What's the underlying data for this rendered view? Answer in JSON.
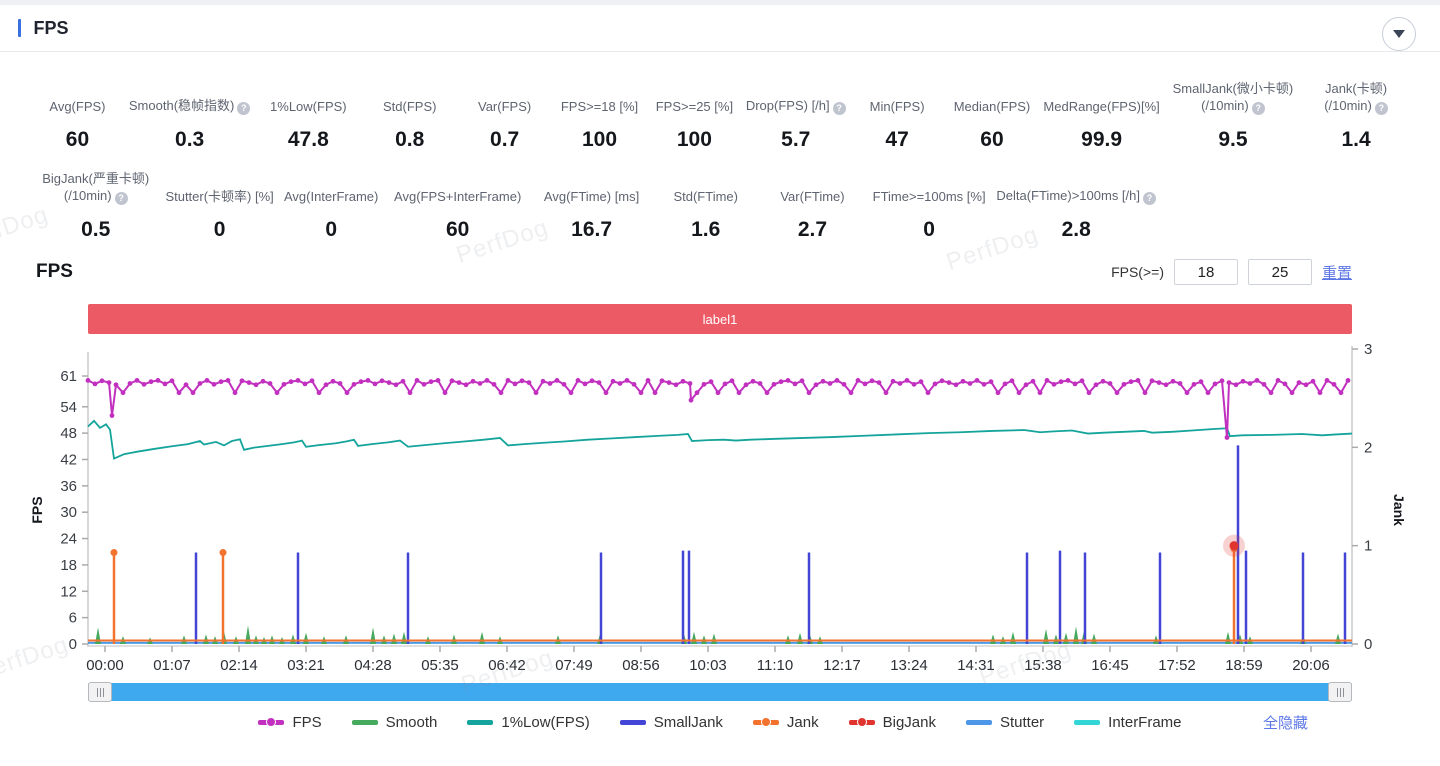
{
  "header": {
    "title": "FPS"
  },
  "icons": {
    "help": "?",
    "collapse": "chevron-down",
    "grip": "|||"
  },
  "watermark": "PerfDog",
  "stats_row1": [
    {
      "lines": [
        "Avg(FPS)"
      ],
      "value": "60"
    },
    {
      "lines": [
        "Smooth(稳帧指数)"
      ],
      "help": true,
      "value": "0.3"
    },
    {
      "lines": [
        "1%Low(FPS)"
      ],
      "value": "47.8"
    },
    {
      "lines": [
        "Std(FPS)"
      ],
      "value": "0.8"
    },
    {
      "lines": [
        "Var(FPS)"
      ],
      "value": "0.7"
    },
    {
      "lines": [
        "FPS>=18 [%]"
      ],
      "value": "100"
    },
    {
      "lines": [
        "FPS>=25 [%]"
      ],
      "value": "100"
    },
    {
      "lines": [
        "Drop(FPS) [/h]"
      ],
      "help": true,
      "value": "5.7"
    },
    {
      "lines": [
        "Min(FPS)"
      ],
      "value": "47"
    },
    {
      "lines": [
        "Median(FPS)"
      ],
      "value": "60"
    },
    {
      "lines": [
        "MedRange(FPS)[%]"
      ],
      "value": "99.9"
    },
    {
      "lines": [
        "SmallJank(微小卡顿)",
        "(/10min)"
      ],
      "help": true,
      "value": "9.5"
    },
    {
      "lines": [
        "Jank(卡顿)",
        "(/10min)"
      ],
      "help": true,
      "value": "1.4"
    }
  ],
  "stats_row2": [
    {
      "lines": [
        "BigJank(严重卡顿)",
        "(/10min)"
      ],
      "help": true,
      "value": "0.5"
    },
    {
      "lines": [
        "Stutter(卡顿率) [%]"
      ],
      "value": "0"
    },
    {
      "lines": [
        "Avg(InterFrame)"
      ],
      "value": "0"
    },
    {
      "lines": [
        "Avg(FPS+InterFrame)"
      ],
      "value": "60"
    },
    {
      "lines": [
        "Avg(FTime) [ms]"
      ],
      "value": "16.7"
    },
    {
      "lines": [
        "Std(FTime)"
      ],
      "value": "1.6"
    },
    {
      "lines": [
        "Var(FTime)"
      ],
      "value": "2.7"
    },
    {
      "lines": [
        "FTime>=100ms [%]"
      ],
      "value": "0"
    },
    {
      "lines": [
        "Delta(FTime)>100ms [/h]"
      ],
      "help": true,
      "value": "2.8"
    }
  ],
  "chart_section": {
    "title": "FPS",
    "threshold_label": "FPS(>=)",
    "min_value": "18",
    "max_value": "25",
    "reset_label": "重置",
    "banner_label": "label1",
    "hide_all_label": "全隐藏"
  },
  "chart_data": {
    "type": "line",
    "title": "FPS",
    "x_ticks": [
      "00:00",
      "01:07",
      "02:14",
      "03:21",
      "04:28",
      "05:35",
      "06:42",
      "07:49",
      "08:56",
      "10:03",
      "11:10",
      "12:17",
      "13:24",
      "14:31",
      "15:38",
      "16:45",
      "17:52",
      "18:59",
      "20:06"
    ],
    "x_tick_interval_s": 67,
    "x_duration_s": 1264,
    "left_axis": {
      "label": "FPS",
      "ticks": [
        0,
        6,
        12,
        18,
        24,
        30,
        36,
        42,
        48,
        54,
        61
      ],
      "max": 61
    },
    "right_axis": {
      "label": "Jank",
      "ticks": [
        0,
        1,
        2,
        3
      ],
      "max": 3
    },
    "series": [
      {
        "name": "1%Low(FPS)",
        "color": "#14a49c",
        "axis": "left",
        "style": "line",
        "points": [
          [
            0,
            49.5
          ],
          [
            6,
            50.8
          ],
          [
            12,
            49.2
          ],
          [
            18,
            50.0
          ],
          [
            22,
            48.8
          ],
          [
            26,
            42.2
          ],
          [
            36,
            43.2
          ],
          [
            50,
            43.8
          ],
          [
            66,
            44.4
          ],
          [
            84,
            45.0
          ],
          [
            100,
            45.5
          ],
          [
            112,
            46.2
          ],
          [
            116,
            45.4
          ],
          [
            128,
            46.0
          ],
          [
            136,
            45.2
          ],
          [
            144,
            46.2
          ],
          [
            152,
            46.6
          ],
          [
            156,
            44.2
          ],
          [
            166,
            44.7
          ],
          [
            180,
            45.1
          ],
          [
            194,
            45.5
          ],
          [
            206,
            45.9
          ],
          [
            214,
            46.3
          ],
          [
            218,
            44.9
          ],
          [
            232,
            45.3
          ],
          [
            248,
            45.7
          ],
          [
            258,
            46.1
          ],
          [
            266,
            46.5
          ],
          [
            270,
            45.1
          ],
          [
            284,
            45.5
          ],
          [
            300,
            45.9
          ],
          [
            312,
            46.3
          ],
          [
            320,
            44.9
          ],
          [
            334,
            45.2
          ],
          [
            356,
            45.7
          ],
          [
            376,
            46.1
          ],
          [
            396,
            46.5
          ],
          [
            412,
            46.9
          ],
          [
            420,
            45.2
          ],
          [
            436,
            45.5
          ],
          [
            456,
            45.8
          ],
          [
            476,
            46.1
          ],
          [
            500,
            46.5
          ],
          [
            524,
            46.8
          ],
          [
            548,
            47.1
          ],
          [
            572,
            47.4
          ],
          [
            590,
            47.6
          ],
          [
            600,
            47.8
          ],
          [
            604,
            46.2
          ],
          [
            620,
            46.4
          ],
          [
            636,
            46.5
          ],
          [
            648,
            46.3
          ],
          [
            662,
            46.5
          ],
          [
            688,
            46.7
          ],
          [
            716,
            46.9
          ],
          [
            744,
            47.1
          ],
          [
            776,
            47.4
          ],
          [
            808,
            47.7
          ],
          [
            840,
            48.0
          ],
          [
            872,
            48.2
          ],
          [
            904,
            48.5
          ],
          [
            936,
            48.7
          ],
          [
            952,
            48.2
          ],
          [
            966,
            48.4
          ],
          [
            984,
            48.6
          ],
          [
            1000,
            47.9
          ],
          [
            1016,
            48.1
          ],
          [
            1036,
            48.3
          ],
          [
            1056,
            48.5
          ],
          [
            1064,
            48.1
          ],
          [
            1084,
            48.3
          ],
          [
            1104,
            48.6
          ],
          [
            1124,
            48.9
          ],
          [
            1139,
            49.1
          ],
          [
            1142,
            47.3
          ],
          [
            1154,
            47.5
          ],
          [
            1184,
            47.6
          ],
          [
            1214,
            47.8
          ],
          [
            1234,
            47.5
          ],
          [
            1248,
            47.7
          ],
          [
            1264,
            47.9
          ]
        ]
      },
      {
        "name": "InterFrame",
        "color": "#33d6d6",
        "axis": "left",
        "style": "line",
        "points": [
          [
            0,
            0.25
          ],
          [
            1264,
            0.25
          ]
        ]
      },
      {
        "name": "Stutter",
        "color": "#4d96e8",
        "axis": "right",
        "style": "line",
        "points": [
          [
            0,
            0.012
          ],
          [
            1264,
            0.012
          ]
        ]
      },
      {
        "name": "Smooth",
        "color": "#45a95e",
        "axis": "left",
        "style": "spikes-fill",
        "spikes": [
          [
            10,
            3.8
          ],
          [
            35,
            1.8
          ],
          [
            62,
            1.5
          ],
          [
            96,
            2.0
          ],
          [
            118,
            2.2
          ],
          [
            127,
            1.8
          ],
          [
            136,
            2.8
          ],
          [
            148,
            1.8
          ],
          [
            160,
            4.2
          ],
          [
            168,
            2.0
          ],
          [
            176,
            1.6
          ],
          [
            184,
            2.0
          ],
          [
            194,
            1.6
          ],
          [
            205,
            2.2
          ],
          [
            218,
            2.6
          ],
          [
            236,
            1.8
          ],
          [
            258,
            2.0
          ],
          [
            285,
            3.8
          ],
          [
            296,
            2.0
          ],
          [
            306,
            2.4
          ],
          [
            316,
            2.8
          ],
          [
            340,
            1.8
          ],
          [
            366,
            2.2
          ],
          [
            394,
            2.8
          ],
          [
            412,
            1.8
          ],
          [
            470,
            2.0
          ],
          [
            512,
            2.2
          ],
          [
            596,
            2.2
          ],
          [
            606,
            2.8
          ],
          [
            616,
            2.0
          ],
          [
            626,
            2.4
          ],
          [
            700,
            2.0
          ],
          [
            712,
            2.6
          ],
          [
            722,
            2.0
          ],
          [
            732,
            1.8
          ],
          [
            905,
            2.2
          ],
          [
            915,
            1.8
          ],
          [
            925,
            2.8
          ],
          [
            958,
            3.4
          ],
          [
            968,
            2.2
          ],
          [
            978,
            2.6
          ],
          [
            988,
            4.0
          ],
          [
            996,
            3.0
          ],
          [
            1006,
            2.4
          ],
          [
            1068,
            2.0
          ],
          [
            1140,
            2.8
          ],
          [
            1152,
            2.2
          ],
          [
            1162,
            1.8
          ],
          [
            1215,
            2.0
          ],
          [
            1250,
            2.4
          ]
        ]
      },
      {
        "name": "SmallJank",
        "color": "#4245d6",
        "axis": "right",
        "style": "spikes",
        "spikes": [
          [
            108,
            0.93
          ],
          [
            210,
            0.93
          ],
          [
            320,
            0.93
          ],
          [
            513,
            0.93
          ],
          [
            595,
            0.95
          ],
          [
            601,
            0.95
          ],
          [
            721,
            0.93
          ],
          [
            939,
            0.93
          ],
          [
            972,
            0.95
          ],
          [
            997,
            0.93
          ],
          [
            1072,
            0.93
          ],
          [
            1150,
            2.02
          ],
          [
            1158,
            0.95
          ],
          [
            1215,
            0.93
          ],
          [
            1257,
            0.93
          ]
        ]
      },
      {
        "name": "Jank",
        "color": "#f2722e",
        "axis": "right",
        "style": "spikes-dot",
        "baseline": 0.035,
        "spikes": [
          [
            26,
            0.93
          ],
          [
            135,
            0.93
          ],
          [
            1146,
            0.97
          ]
        ]
      },
      {
        "name": "BigJank",
        "color": "#e0342e",
        "axis": "right",
        "style": "point",
        "highlight": true,
        "points": [
          [
            1146,
            1
          ]
        ]
      },
      {
        "name": "FPS",
        "color": "#c130be",
        "axis": "left",
        "style": "line-dots",
        "baseline": 60,
        "small_dips": [
          37,
          90,
          107,
          150,
          190,
          230,
          262,
          320,
          360,
          410,
          445,
          480,
          520,
          552,
          568,
          610,
          633,
          650,
          680,
          720,
          760,
          800,
          840,
          910,
          930,
          950,
          1000,
          1028,
          1060,
          1100,
          1118,
          1180,
          1205,
          1230,
          1255
        ],
        "major_dips": [
          [
            24,
            52
          ],
          [
            603,
            55.5
          ],
          [
            1139,
            47
          ]
        ]
      }
    ],
    "legend_order": [
      "FPS",
      "Smooth",
      "1%Low(FPS)",
      "SmallJank",
      "Jank",
      "BigJank",
      "Stutter",
      "InterFrame"
    ]
  }
}
